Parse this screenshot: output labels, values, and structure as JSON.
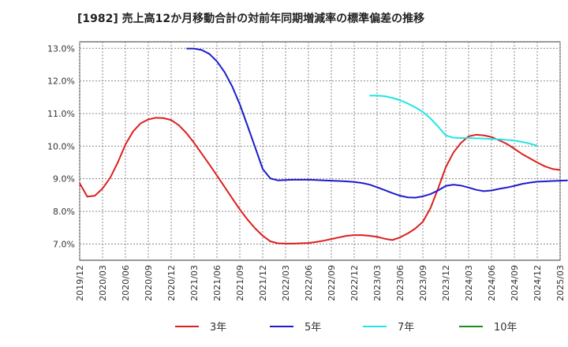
{
  "chart_data": {
    "type": "line",
    "title": "[1982]  売上高12か月移動合計の対前年同期増減率の標準偏差の推移",
    "xlabel": "",
    "ylabel": "",
    "ylim": [
      6.5,
      13.2
    ],
    "yticks": [
      "7.0%",
      "8.0%",
      "9.0%",
      "10.0%",
      "11.0%",
      "12.0%",
      "13.0%"
    ],
    "ytick_values": [
      7,
      8,
      9,
      10,
      11,
      12,
      13
    ],
    "x_range": [
      "2019-12",
      "2025-03"
    ],
    "xticks": [
      "2019/12",
      "2020/03",
      "2020/06",
      "2020/09",
      "2020/12",
      "2021/03",
      "2021/06",
      "2021/09",
      "2021/12",
      "2022/03",
      "2022/06",
      "2022/09",
      "2022/12",
      "2023/03",
      "2023/06",
      "2023/09",
      "2023/12",
      "2024/03",
      "2024/06",
      "2024/09",
      "2024/12",
      "2025/03"
    ],
    "grid": true,
    "legend_position": "bottom",
    "series": [
      {
        "name": "3年",
        "color": "#dd1f1f",
        "start": "2019-12",
        "values": [
          8.86,
          8.45,
          8.48,
          8.7,
          9.03,
          9.5,
          10.05,
          10.45,
          10.7,
          10.82,
          10.87,
          10.86,
          10.8,
          10.64,
          10.4,
          10.1,
          9.77,
          9.44,
          9.1,
          8.75,
          8.4,
          8.06,
          7.75,
          7.48,
          7.25,
          7.08,
          7.02,
          7.01,
          7.01,
          7.02,
          7.03,
          7.06,
          7.1,
          7.15,
          7.2,
          7.25,
          7.27,
          7.27,
          7.25,
          7.22,
          7.16,
          7.12,
          7.2,
          7.32,
          7.47,
          7.68,
          8.1,
          8.7,
          9.35,
          9.8,
          10.1,
          10.3,
          10.35,
          10.33,
          10.28,
          10.18,
          10.07,
          9.92,
          9.76,
          9.63,
          9.5,
          9.38,
          9.3,
          9.27
        ]
      },
      {
        "name": "5年",
        "color": "#1c1ccc",
        "start": "2021-02",
        "values": [
          12.99,
          12.99,
          12.95,
          12.83,
          12.6,
          12.27,
          11.83,
          11.28,
          10.63,
          9.97,
          9.3,
          9.01,
          8.95,
          8.96,
          8.97,
          8.97,
          8.97,
          8.96,
          8.95,
          8.94,
          8.93,
          8.92,
          8.9,
          8.87,
          8.82,
          8.74,
          8.65,
          8.56,
          8.48,
          8.43,
          8.42,
          8.46,
          8.53,
          8.64,
          8.78,
          8.82,
          8.79,
          8.73,
          8.66,
          8.62,
          8.64,
          8.69,
          8.73,
          8.78,
          8.84,
          8.88,
          8.91,
          8.92,
          8.93,
          8.94,
          8.95
        ]
      },
      {
        "name": "7年",
        "color": "#22e5e5",
        "start": "2023-02",
        "values": [
          11.55,
          11.55,
          11.53,
          11.48,
          11.41,
          11.31,
          11.19,
          11.05,
          10.85,
          10.6,
          10.33,
          10.26,
          10.25,
          10.25,
          10.24,
          10.23,
          10.22,
          10.21,
          10.19,
          10.17,
          10.13,
          10.08,
          10.01
        ]
      },
      {
        "name": "10年",
        "color": "#1f8c1f",
        "start": "2024-12",
        "values": []
      }
    ]
  }
}
